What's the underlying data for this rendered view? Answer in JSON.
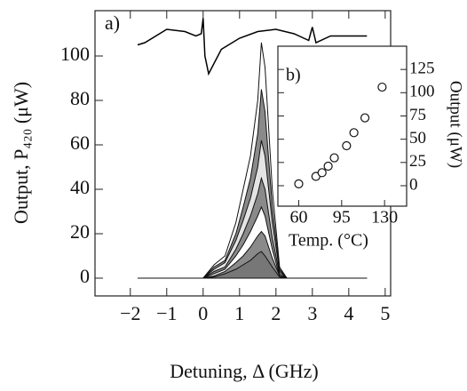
{
  "chart_data": [
    {
      "type": "area",
      "annotation": "a)",
      "x_label": "Detuning, Δ (GHz)",
      "y_label": "Output, P₄₂₀ (μW)",
      "x": [
        -1.8,
        0,
        0.3,
        0.6,
        0.9,
        1.1,
        1.3,
        1.5,
        1.6,
        1.7,
        1.9,
        2.1,
        2.3,
        4.5
      ],
      "series": [
        {
          "color": "#ffffff",
          "values": [
            0,
            0,
            6,
            10,
            25,
            40,
            55,
            80,
            106,
            95,
            40,
            5,
            0,
            0
          ]
        },
        {
          "color": "#8a8a8a",
          "values": [
            0,
            0,
            5,
            8,
            20,
            32,
            45,
            65,
            85,
            75,
            32,
            4,
            0,
            0
          ]
        },
        {
          "color": "#e4e4e4",
          "values": [
            0,
            0,
            4,
            7,
            17,
            26,
            36,
            50,
            62,
            55,
            25,
            3,
            0,
            0
          ]
        },
        {
          "color": "#8a8a8a",
          "values": [
            0,
            0,
            3,
            5,
            13,
            20,
            28,
            38,
            45,
            40,
            18,
            2,
            0,
            0
          ]
        },
        {
          "color": "#ffffff",
          "values": [
            0,
            0,
            2,
            4,
            10,
            15,
            21,
            28,
            32,
            28,
            13,
            1,
            0,
            0
          ]
        },
        {
          "color": "#8a8a8a",
          "values": [
            0,
            0,
            1,
            3,
            7,
            10,
            14,
            19,
            21,
            19,
            9,
            1,
            0,
            0
          ]
        },
        {
          "color": "#777777",
          "values": [
            0,
            0,
            0.5,
            2,
            4,
            6,
            8,
            11,
            12,
            10,
            5,
            0.5,
            0,
            0
          ]
        }
      ],
      "reference_trace": {
        "color": "#000000",
        "x": [
          -1.8,
          -1.6,
          -1,
          -0.5,
          -0.2,
          -0.05,
          0,
          0.05,
          0.15,
          0.5,
          1,
          1.5,
          2,
          2.5,
          2.9,
          3,
          3.1,
          3.5,
          4,
          4.5
        ],
        "values": [
          105,
          106,
          112,
          111,
          109,
          110,
          117,
          100,
          92,
          103,
          108,
          111,
          112,
          110,
          107,
          113,
          106,
          109,
          109,
          109
        ]
      },
      "xlim": [
        -2.97,
        5.15
      ],
      "ylim": [
        -8,
        120.4
      ],
      "xticks": [
        {
          "value": -2,
          "label": "−2"
        },
        {
          "value": -1,
          "label": "−1"
        },
        0,
        1,
        2,
        3,
        4,
        5
      ],
      "yticks": [
        0,
        20,
        40,
        60,
        80,
        100
      ]
    },
    {
      "type": "scatter",
      "annotation": "b)",
      "x_label": "Temp. (°C)",
      "y_label": "Output (μW)",
      "x": [
        60,
        74,
        79,
        84,
        89,
        99,
        105,
        114,
        128
      ],
      "values": [
        2,
        10,
        14,
        21,
        30,
        43,
        57,
        73,
        106
      ],
      "xlim": [
        43,
        148
      ],
      "ylim": [
        -22,
        150
      ],
      "xticks": [
        60,
        95,
        130
      ],
      "yticks": [
        0,
        25,
        50,
        75,
        100,
        125
      ]
    }
  ]
}
